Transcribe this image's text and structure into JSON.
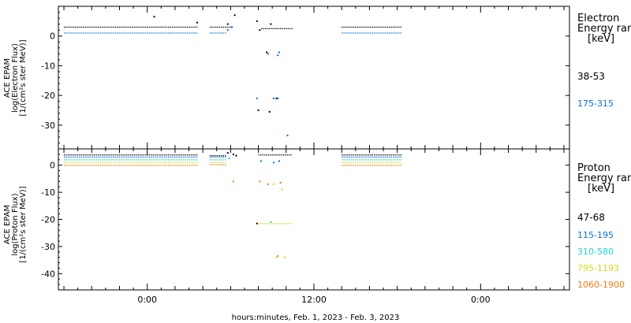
{
  "chart_data": [
    {
      "type": "scatter",
      "panel": "electron",
      "ylabel_lines": [
        "ACE EPAM",
        "log(Electron Flux)",
        "[1/(cm²s ster MeV)]"
      ],
      "ylim": [
        -38,
        10
      ],
      "yticks": [
        0,
        -10,
        -20,
        -30
      ],
      "legend_title": [
        "Electron",
        "Energy ran",
        "[keV]"
      ],
      "legend_placement": "right",
      "series": [
        {
          "name": "38-53",
          "color": "#000000",
          "segments": [
            {
              "x": [
                -6.0,
                3.6
              ],
              "y": 3.0
            },
            {
              "x": [
                4.5,
                6.0
              ],
              "y": 3.0
            },
            {
              "x": [
                8.2,
                10.4
              ],
              "y": 2.5
            },
            {
              "x": [
                14.0,
                18.3
              ],
              "y": 3.0
            }
          ],
          "points": [
            {
              "x": 0.5,
              "y": 6.5
            },
            {
              "x": 3.6,
              "y": 4.5
            },
            {
              "x": 5.8,
              "y": 4.0
            },
            {
              "x": 6.3,
              "y": 7.0
            },
            {
              "x": 7.9,
              "y": 5.0
            },
            {
              "x": 8.1,
              "y": 2.0
            },
            {
              "x": 8.9,
              "y": 4.0
            },
            {
              "x": 8.6,
              "y": -5.5
            },
            {
              "x": 8.0,
              "y": -25.0
            },
            {
              "x": 8.8,
              "y": -25.5
            },
            {
              "x": 9.3,
              "y": -21.0
            }
          ]
        },
        {
          "name": "175-315",
          "color": "#0a6fd8",
          "segments": [
            {
              "x": [
                -6.0,
                3.6
              ],
              "y": 1.0
            },
            {
              "x": [
                4.5,
                5.7
              ],
              "y": 1.0
            },
            {
              "x": [
                14.0,
                18.3
              ],
              "y": 1.0
            }
          ],
          "points": [
            {
              "x": 5.8,
              "y": 2.0
            },
            {
              "x": 6.1,
              "y": 3.0
            },
            {
              "x": 8.7,
              "y": -6.0
            },
            {
              "x": 9.5,
              "y": -5.5
            },
            {
              "x": 9.4,
              "y": -6.5
            },
            {
              "x": 7.9,
              "y": -21.0
            },
            {
              "x": 9.1,
              "y": -21.0
            },
            {
              "x": 9.4,
              "y": -21.0
            },
            {
              "x": 10.1,
              "y": -33.5
            }
          ]
        }
      ]
    },
    {
      "type": "scatter",
      "panel": "proton",
      "ylabel_lines": [
        "ACE EPAM",
        "log(Proton Flux)",
        "[1/(cm²s ster MeV)]"
      ],
      "ylim": [
        -46,
        6
      ],
      "yticks": [
        0,
        -10,
        -20,
        -30,
        -40
      ],
      "legend_title": [
        "Proton",
        "Energy ran",
        "[keV]"
      ],
      "legend_placement": "right",
      "series": [
        {
          "name": "47-68",
          "color": "#000000",
          "segments": [
            {
              "x": [
                -6.0,
                3.6
              ],
              "y": 3.8
            },
            {
              "x": [
                4.5,
                5.6
              ],
              "y": 3.5
            },
            {
              "x": [
                8.0,
                10.4
              ],
              "y": 3.8
            },
            {
              "x": [
                14.0,
                18.3
              ],
              "y": 3.8
            }
          ],
          "points": [
            {
              "x": 5.8,
              "y": 4.5
            },
            {
              "x": 6.2,
              "y": 4.0
            },
            {
              "x": 6.4,
              "y": 3.5
            },
            {
              "x": 7.9,
              "y": -21.5
            }
          ]
        },
        {
          "name": "115-195",
          "color": "#0a6fd8",
          "segments": [
            {
              "x": [
                -6.0,
                3.6
              ],
              "y": 3.0
            },
            {
              "x": [
                4.5,
                5.6
              ],
              "y": 3.0
            },
            {
              "x": [
                14.0,
                18.3
              ],
              "y": 3.0
            }
          ],
          "points": [
            {
              "x": 8.2,
              "y": 1.5
            },
            {
              "x": 9.1,
              "y": 1.0
            },
            {
              "x": 9.5,
              "y": 1.5
            }
          ]
        },
        {
          "name": "310-580",
          "color": "#22d3d3",
          "segments": [
            {
              "x": [
                -6.0,
                3.6
              ],
              "y": 2.0
            },
            {
              "x": [
                4.5,
                5.6
              ],
              "y": 2.0
            },
            {
              "x": [
                14.0,
                18.3
              ],
              "y": 2.0
            }
          ],
          "points": [
            {
              "x": 5.9,
              "y": 2.5
            },
            {
              "x": 8.9,
              "y": -21.0
            }
          ]
        },
        {
          "name": "795-1193",
          "color": "#d8d81a",
          "segments": [
            {
              "x": [
                -6.0,
                3.6
              ],
              "y": 1.0
            },
            {
              "x": [
                4.5,
                5.6
              ],
              "y": 1.0
            },
            {
              "x": [
                14.0,
                18.3
              ],
              "y": 1.0
            },
            {
              "x": [
                8.0,
                10.4
              ],
              "y": -21.5
            }
          ],
          "points": [
            {
              "x": 9.1,
              "y": -7.0
            },
            {
              "x": 9.7,
              "y": -9.0
            },
            {
              "x": 9.3,
              "y": -34.0
            },
            {
              "x": 9.9,
              "y": -34.0
            }
          ]
        },
        {
          "name": "1060-1900",
          "color": "#ee7b10",
          "segments": [
            {
              "x": [
                -6.0,
                3.6
              ],
              "y": 0.0
            },
            {
              "x": [
                4.5,
                5.6
              ],
              "y": 0.2
            },
            {
              "x": [
                14.0,
                18.3
              ],
              "y": 0.0
            }
          ],
          "points": [
            {
              "x": 6.2,
              "y": -6.0
            },
            {
              "x": 8.1,
              "y": -6.0
            },
            {
              "x": 8.7,
              "y": -7.0
            },
            {
              "x": 9.6,
              "y": -6.5
            },
            {
              "x": 9.4,
              "y": -33.5
            }
          ]
        }
      ]
    }
  ],
  "x_axis": {
    "xlim": [
      -6.4,
      30.4
    ],
    "major_ticks": [
      0,
      12,
      24
    ],
    "tick_labels": [
      "0:00",
      "12:00",
      "0:00"
    ],
    "label": "hours:minutes, Feb.  1, 2023 - Feb.  3, 2023"
  }
}
